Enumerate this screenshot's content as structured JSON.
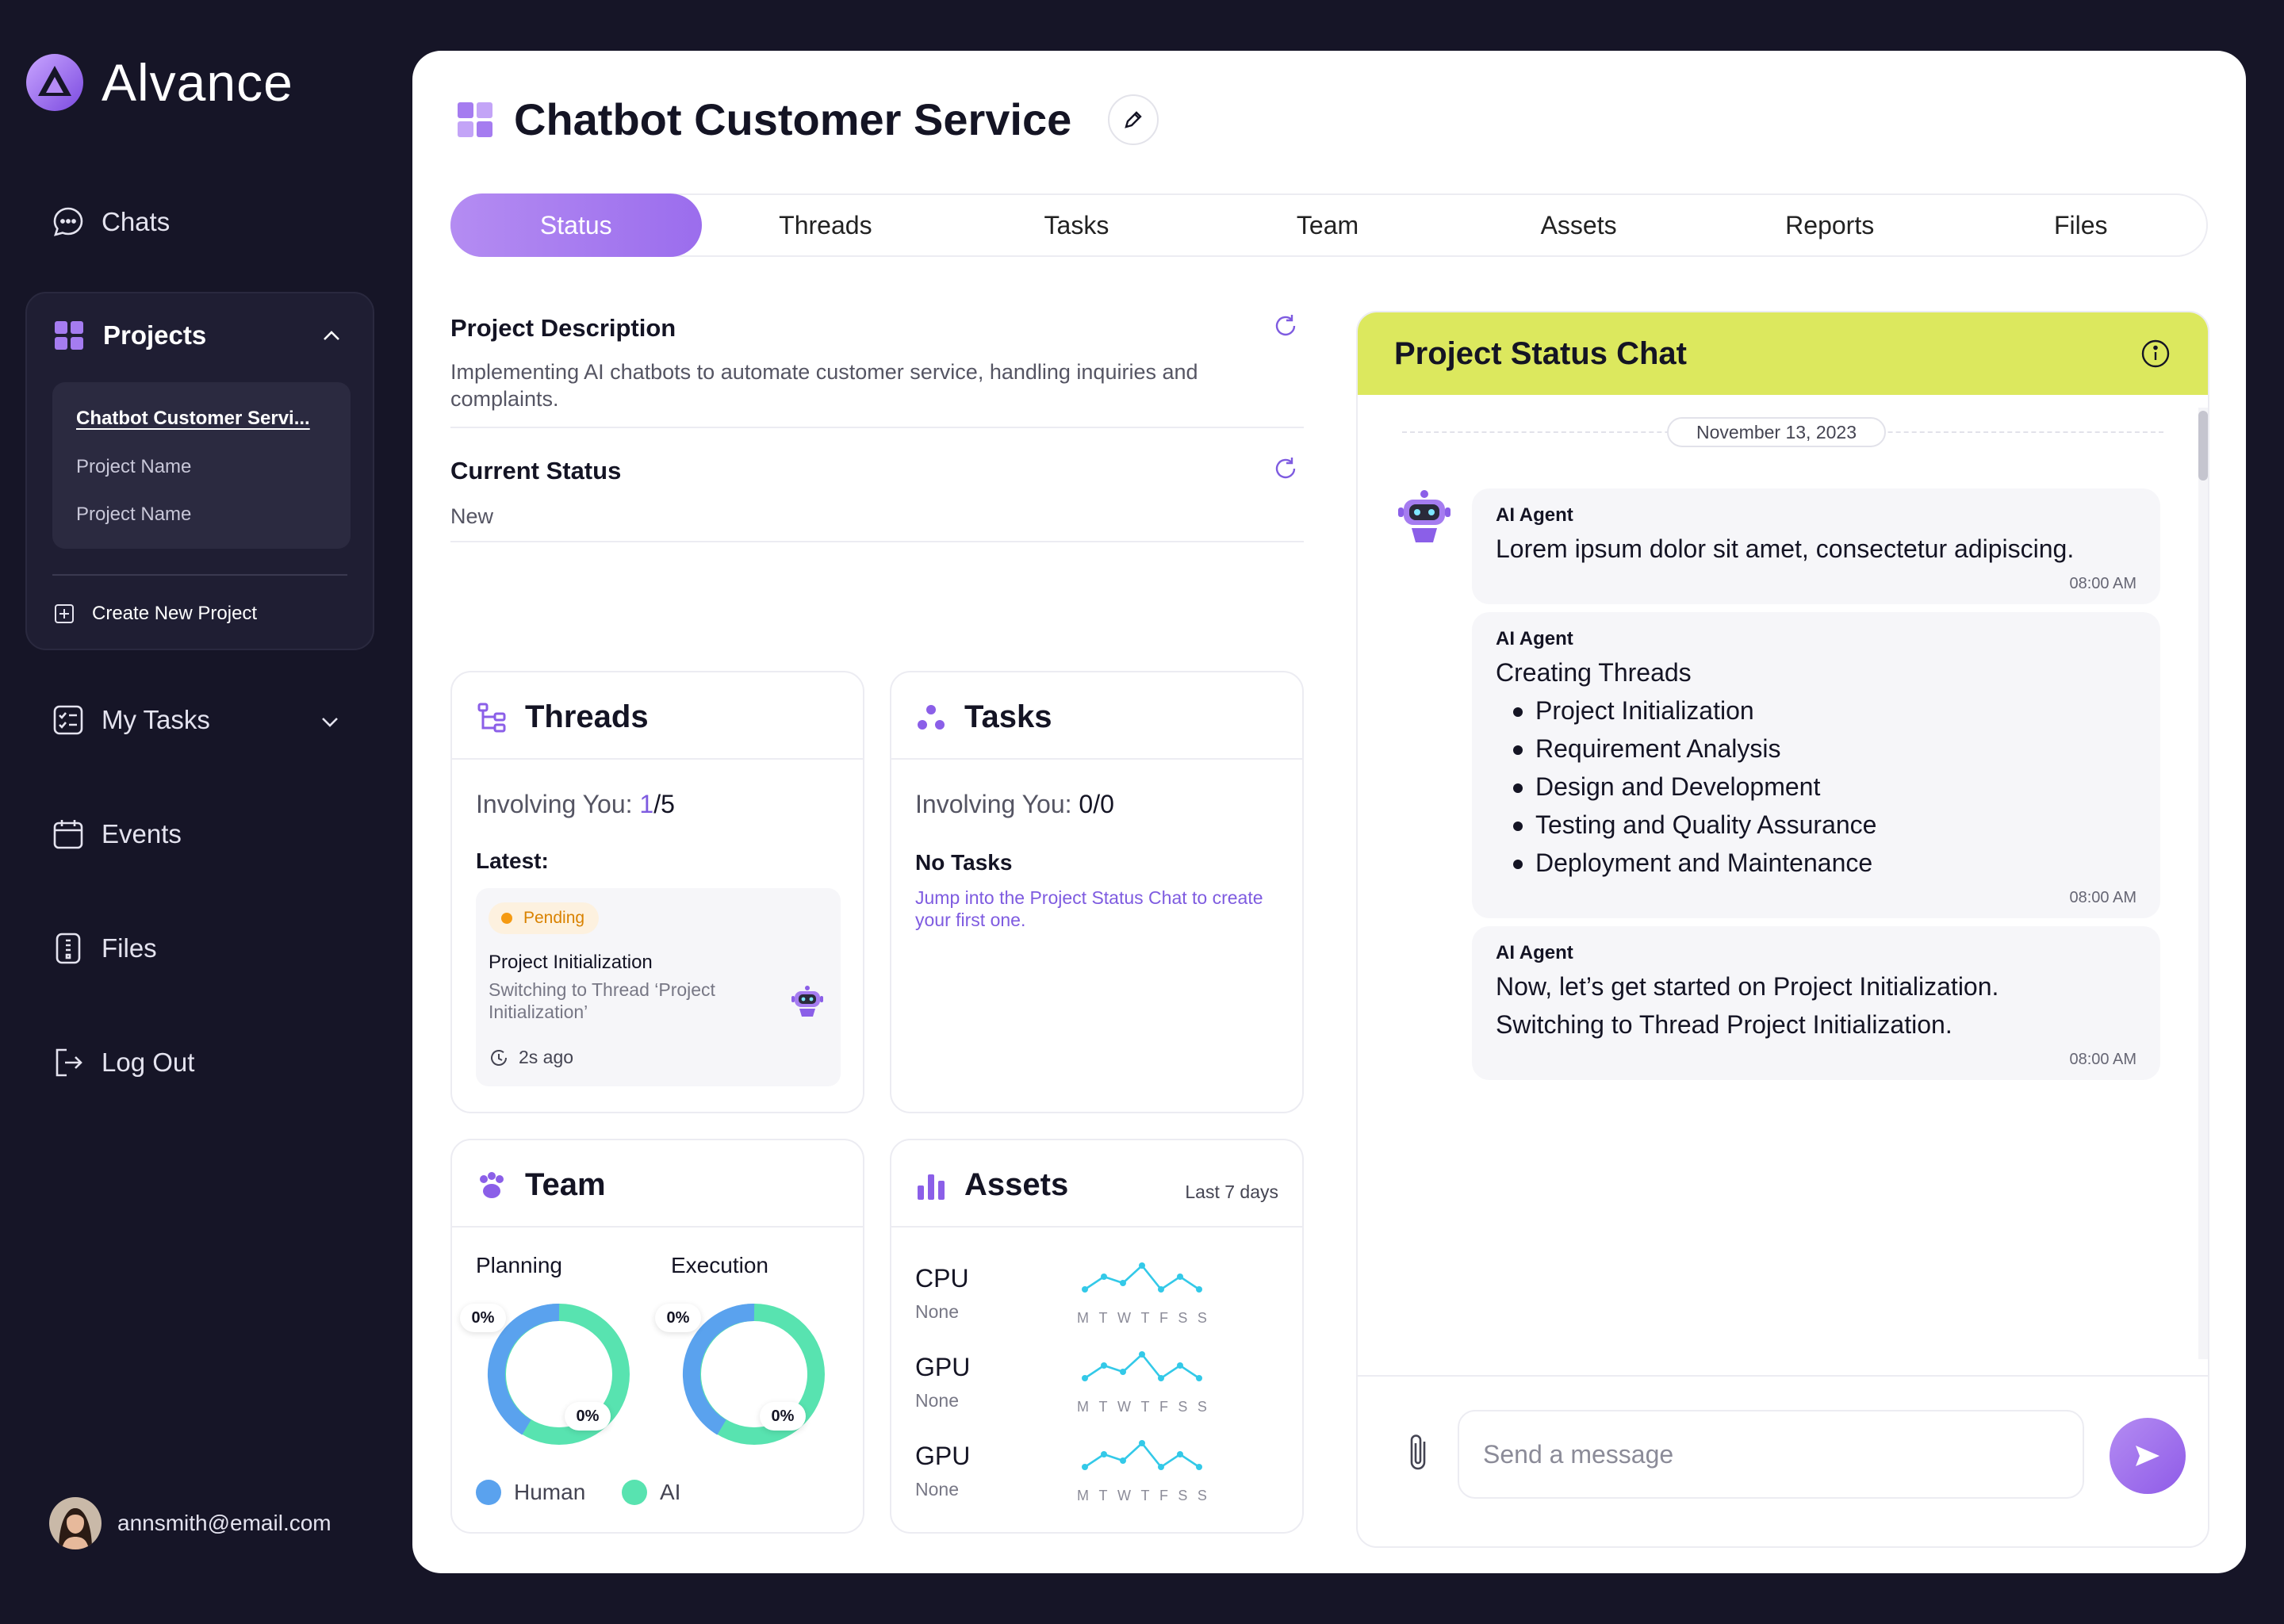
{
  "app": {
    "name": "Alvance"
  },
  "sidebar": {
    "chats": "Chats",
    "projects": {
      "label": "Projects",
      "items": [
        "Chatbot Customer Servi...",
        "Project Name",
        "Project Name"
      ],
      "create": "Create New Project"
    },
    "my_tasks": "My Tasks",
    "events": "Events",
    "files": "Files",
    "logout": "Log Out",
    "user_email": "annsmith@email.com"
  },
  "page": {
    "title": "Chatbot Customer Service",
    "tabs": [
      "Status",
      "Threads",
      "Tasks",
      "Team",
      "Assets",
      "Reports",
      "Files"
    ],
    "active_tab": "Status",
    "description_label": "Project Description",
    "description": "Implementing AI chatbots to automate customer service, handling inquiries and complaints.",
    "status_label": "Current Status",
    "status": "New"
  },
  "threads_card": {
    "title": "Threads",
    "involving_label": "Involving You:",
    "involving_value": "1",
    "involving_total": "/5",
    "latest_label": "Latest:",
    "latest": {
      "badge": "Pending",
      "title": "Project Initialization",
      "subtitle": "Switching to Thread ‘Project Initialization’",
      "time": "2s ago"
    }
  },
  "tasks_card": {
    "title": "Tasks",
    "involving_label": "Involving You:",
    "involving_value": "0/0",
    "empty_title": "No Tasks",
    "empty_hint": "Jump into the Project Status Chat to create your first one."
  },
  "team_card": {
    "title": "Team",
    "columns": [
      {
        "label": "Planning",
        "human_pct": "0%",
        "ai_pct": "0%"
      },
      {
        "label": "Execution",
        "human_pct": "0%",
        "ai_pct": "0%"
      }
    ],
    "legend": {
      "human": "Human",
      "ai": "AI"
    },
    "colors": {
      "human": "#5aa2ee",
      "ai": "#58e3b0"
    }
  },
  "assets_card": {
    "title": "Assets",
    "range": "Last 7 days",
    "days": [
      "M",
      "T",
      "W",
      "T",
      "F",
      "S",
      "S"
    ],
    "rows": [
      {
        "name": "CPU",
        "value": "None"
      },
      {
        "name": "GPU",
        "value": "None"
      },
      {
        "name": "GPU",
        "value": "None"
      }
    ],
    "spark_color": "#33c9e8"
  },
  "chat": {
    "title": "Project Status Chat",
    "date": "November 13, 2023",
    "messages": [
      {
        "sender": "AI Agent",
        "text": "Lorem ipsum dolor sit amet, consectetur adipiscing.",
        "time": "08:00 AM"
      },
      {
        "sender": "AI Agent",
        "text": "Creating Threads",
        "list": [
          "Project Initialization",
          "Requirement Analysis",
          "Design and Development",
          "Testing and Quality Assurance",
          "Deployment and Maintenance"
        ],
        "time": "08:00 AM"
      },
      {
        "sender": "AI Agent",
        "text": "Now, let’s get started on Project Initialization.",
        "text2": "Switching to Thread Project Initialization.",
        "time": "08:00 AM"
      }
    ],
    "input_placeholder": "Send a message"
  },
  "colors": {
    "accent": "#9b6ded",
    "chat_header": "#dce85e",
    "sidebar_bg": "#161527",
    "pending": "#f59a12"
  }
}
